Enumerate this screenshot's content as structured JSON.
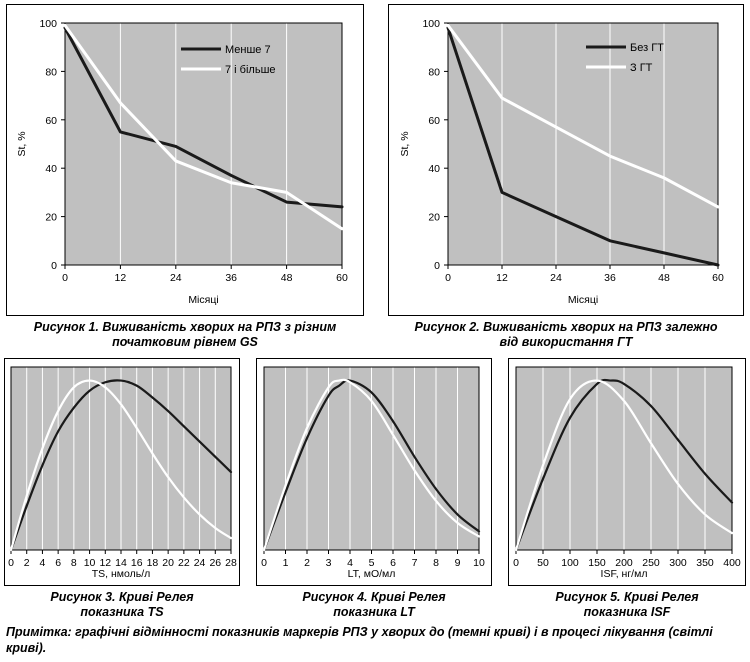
{
  "chart_data": [
    {
      "type": "line",
      "ylabel": "St, %",
      "xlabel": "Місяці",
      "xlim": [
        0,
        60
      ],
      "ylim": [
        0,
        100
      ],
      "xticks": [
        0,
        12,
        24,
        36,
        48,
        60
      ],
      "yticks": [
        0,
        20,
        40,
        60,
        80,
        100
      ],
      "grid": "vertical",
      "legend_position": "top-right",
      "background": "#c0c0c0",
      "series": [
        {
          "name": "Менше 7",
          "color": "#1a1a1a",
          "x": [
            0,
            12,
            24,
            36,
            48,
            60
          ],
          "y": [
            98,
            55,
            49,
            37,
            26,
            24
          ]
        },
        {
          "name": "7 і більше",
          "color": "#ffffff",
          "x": [
            0,
            12,
            24,
            36,
            48,
            60
          ],
          "y": [
            99,
            67,
            43,
            34,
            30,
            15
          ]
        }
      ],
      "caption": "Рисунок 1. Виживаність хворих на РПЗ з різним початковим рівнем GS"
    },
    {
      "type": "line",
      "ylabel": "St, %",
      "xlabel": "Місяці",
      "xlim": [
        0,
        60
      ],
      "ylim": [
        0,
        100
      ],
      "xticks": [
        0,
        12,
        24,
        36,
        48,
        60
      ],
      "yticks": [
        0,
        20,
        40,
        60,
        80,
        100
      ],
      "grid": "vertical",
      "legend_position": "top-right",
      "background": "#c0c0c0",
      "series": [
        {
          "name": "Без ГТ",
          "color": "#1a1a1a",
          "x": [
            0,
            12,
            24,
            36,
            48,
            60
          ],
          "y": [
            98,
            30,
            20,
            10,
            5,
            0
          ]
        },
        {
          "name": "З ГТ",
          "color": "#ffffff",
          "x": [
            0,
            12,
            24,
            36,
            48,
            60
          ],
          "y": [
            99,
            69,
            57,
            45,
            36,
            24
          ]
        }
      ],
      "caption": "Рисунок 2. Виживаність хворих на РПЗ залежно від використання ГТ"
    },
    {
      "type": "line",
      "xlabel": "TS, нмоль/л",
      "xlim": [
        0,
        28
      ],
      "xticks": [
        0,
        2,
        4,
        6,
        8,
        10,
        12,
        14,
        16,
        18,
        20,
        22,
        24,
        26,
        28
      ],
      "grid": "vertical",
      "background": "#c0c0c0",
      "series": [
        {
          "color": "#1a1a1a",
          "x": [
            0,
            2,
            4,
            6,
            8,
            10,
            12,
            14,
            16,
            18,
            20,
            22,
            24,
            26,
            28
          ],
          "y": [
            0,
            0.26,
            0.5,
            0.7,
            0.84,
            0.94,
            0.99,
            1.0,
            0.97,
            0.9,
            0.82,
            0.73,
            0.64,
            0.55,
            0.46
          ]
        },
        {
          "color": "#ffffff",
          "x": [
            0,
            2,
            4,
            6,
            8,
            10,
            12,
            14,
            16,
            18,
            20,
            22,
            24,
            26,
            28
          ],
          "y": [
            0,
            0.32,
            0.6,
            0.82,
            0.96,
            1.0,
            0.96,
            0.86,
            0.72,
            0.57,
            0.43,
            0.31,
            0.21,
            0.13,
            0.07
          ]
        }
      ],
      "caption": "Рисунок 3. Криві Релея показника TS"
    },
    {
      "type": "line",
      "xlabel": "LT, мО/мл",
      "xlim": [
        0,
        10
      ],
      "xticks": [
        0,
        1,
        2,
        3,
        4,
        5,
        6,
        7,
        8,
        9,
        10
      ],
      "grid": "vertical",
      "background": "#c0c0c0",
      "series": [
        {
          "color": "#1a1a1a",
          "x": [
            0,
            1,
            2,
            3,
            3.5,
            4,
            5,
            6,
            7,
            8,
            9,
            10
          ],
          "y": [
            0,
            0.34,
            0.66,
            0.91,
            0.97,
            1.0,
            0.93,
            0.76,
            0.55,
            0.36,
            0.21,
            0.11
          ]
        },
        {
          "color": "#ffffff",
          "x": [
            0,
            1,
            2,
            3,
            3.5,
            4,
            5,
            6,
            7,
            8,
            9,
            10
          ],
          "y": [
            0,
            0.38,
            0.72,
            0.96,
            1.0,
            0.99,
            0.88,
            0.68,
            0.47,
            0.29,
            0.16,
            0.08
          ]
        }
      ],
      "caption": "Рисунок 4. Криві Релея показника LT"
    },
    {
      "type": "line",
      "xlabel": "ISF, нг/мл",
      "xlim": [
        0,
        400
      ],
      "xticks": [
        0,
        50,
        100,
        150,
        200,
        250,
        300,
        350,
        400
      ],
      "grid": "vertical",
      "background": "#c0c0c0",
      "series": [
        {
          "color": "#1a1a1a",
          "x": [
            0,
            50,
            100,
            150,
            175,
            200,
            250,
            300,
            350,
            400
          ],
          "y": [
            0,
            0.42,
            0.78,
            0.98,
            1.0,
            0.98,
            0.85,
            0.65,
            0.45,
            0.28
          ]
        },
        {
          "color": "#ffffff",
          "x": [
            0,
            50,
            100,
            150,
            200,
            250,
            300,
            350,
            400
          ],
          "y": [
            0,
            0.5,
            0.89,
            1.0,
            0.88,
            0.63,
            0.39,
            0.21,
            0.1
          ]
        }
      ],
      "caption": "Рисунок 5. Криві Релея показника ISF"
    }
  ],
  "captions": {
    "fig1": {
      "line1": "Рисунок 1. Виживаність хворих на РПЗ з різним",
      "line2": "початковим рівнем GS"
    },
    "fig2": {
      "line1": "Рисунок 2. Виживаність хворих на РПЗ залежно",
      "line2": "від використання ГТ"
    },
    "fig3": {
      "line1": "Рисунок 3. Криві Релея",
      "line2": "показника TS"
    },
    "fig4": {
      "line1": "Рисунок 4. Криві Релея",
      "line2": "показника LT"
    },
    "fig5": {
      "line1": "Рисунок 5. Криві Релея",
      "line2": "показника ISF"
    }
  },
  "note": "Примітка: графічні відмінності показників маркерів РПЗ у хворих до (темні криві) і в процесі лікування (світлі криві)."
}
